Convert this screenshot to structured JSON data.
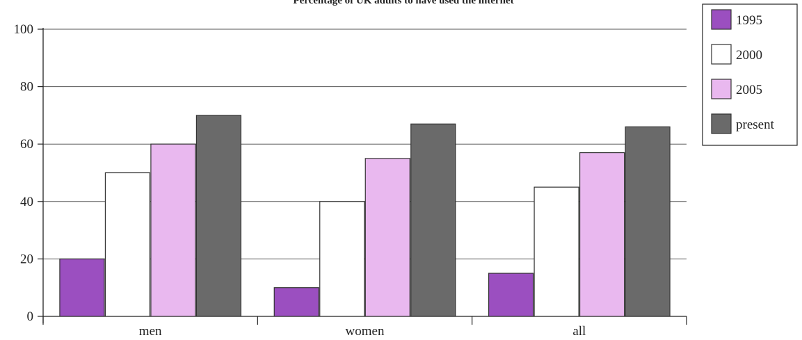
{
  "chart_data": {
    "type": "bar",
    "title": "Percentage of UK adults to have used the internet",
    "xlabel": "",
    "ylabel": "",
    "categories": [
      "men",
      "women",
      "all"
    ],
    "series": [
      {
        "name": "1995",
        "values": [
          20,
          10,
          15
        ],
        "color": "#9b4fc0"
      },
      {
        "name": "2000",
        "values": [
          50,
          40,
          45
        ],
        "color": "#ffffff"
      },
      {
        "name": "2005",
        "values": [
          60,
          55,
          57
        ],
        "color": "#e9b8ef"
      },
      {
        "name": "present",
        "values": [
          70,
          67,
          66
        ],
        "color": "#6a6a6a"
      }
    ],
    "ylim": [
      0,
      100
    ],
    "yticks": [
      0,
      20,
      40,
      60,
      80,
      100
    ],
    "grid": true,
    "legend_position": "top-right"
  }
}
